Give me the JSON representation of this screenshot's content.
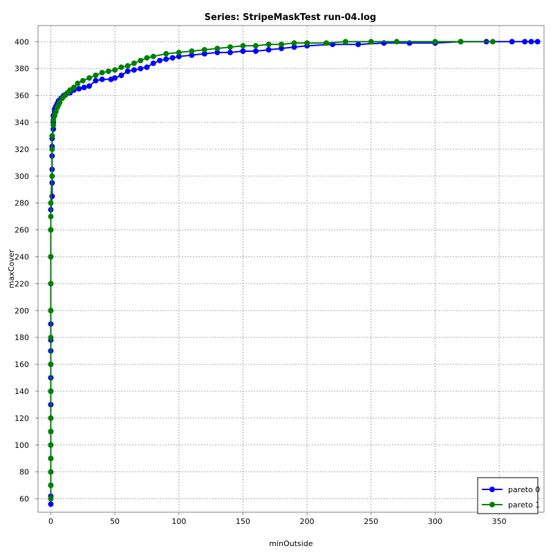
{
  "chart_data": {
    "type": "line",
    "title": "Series: StripeMaskTest run-04.log",
    "xlabel": "minOutside",
    "ylabel": "maxCover",
    "xlim": [
      -10,
      385
    ],
    "ylim": [
      50,
      412
    ],
    "xticks": [
      0,
      50,
      100,
      150,
      200,
      250,
      300,
      350
    ],
    "yticks": [
      60,
      80,
      100,
      120,
      140,
      160,
      180,
      200,
      220,
      240,
      260,
      280,
      300,
      320,
      340,
      360,
      380,
      400
    ],
    "grid": true,
    "legend_position": "bottom-right",
    "series": [
      {
        "name": "pareto 0",
        "color": "#0000ff",
        "x": [
          0,
          0,
          0,
          0,
          0,
          0,
          0,
          0,
          0,
          0,
          0,
          0,
          0,
          0,
          0,
          0,
          0,
          0,
          0,
          0,
          1,
          1,
          1,
          1,
          1,
          1,
          2,
          2,
          2,
          3,
          3,
          4,
          5,
          6,
          8,
          10,
          12,
          15,
          18,
          22,
          26,
          30,
          35,
          40,
          47,
          50,
          55,
          60,
          65,
          70,
          75,
          80,
          85,
          90,
          95,
          100,
          110,
          120,
          130,
          140,
          150,
          160,
          170,
          180,
          190,
          200,
          220,
          240,
          260,
          280,
          300,
          320,
          340,
          360,
          370,
          375,
          380
        ],
        "y": [
          56,
          62,
          70,
          80,
          90,
          100,
          110,
          120,
          130,
          140,
          150,
          160,
          170,
          178,
          190,
          200,
          220,
          240,
          260,
          275,
          285,
          295,
          305,
          315,
          322,
          328,
          335,
          340,
          345,
          348,
          350,
          352,
          354,
          356,
          358,
          360,
          361,
          362,
          364,
          365,
          366,
          367,
          371,
          372,
          372,
          373,
          375,
          378,
          379,
          380,
          381,
          384,
          386,
          387,
          388,
          389,
          390,
          391,
          392,
          392,
          393,
          393,
          394,
          395,
          396,
          397,
          398,
          398,
          399,
          399,
          399,
          400,
          400,
          400,
          400,
          400,
          400
        ]
      },
      {
        "name": "pareto 1",
        "color": "#007f00",
        "x": [
          0,
          0,
          0,
          0,
          0,
          0,
          0,
          0,
          0,
          0,
          0,
          0,
          0,
          0,
          0,
          0,
          1,
          1,
          1,
          2,
          2,
          3,
          4,
          5,
          6,
          7,
          9,
          11,
          13,
          15,
          18,
          21,
          25,
          30,
          35,
          40,
          45,
          50,
          55,
          60,
          65,
          70,
          75,
          80,
          90,
          100,
          110,
          120,
          130,
          140,
          150,
          160,
          170,
          180,
          190,
          200,
          215,
          230,
          250,
          270,
          300,
          320,
          345
        ],
        "y": [
          60,
          70,
          80,
          90,
          100,
          110,
          120,
          140,
          160,
          180,
          200,
          220,
          240,
          260,
          270,
          280,
          300,
          320,
          330,
          338,
          342,
          345,
          348,
          351,
          353,
          355,
          358,
          360,
          362,
          364,
          366,
          369,
          371,
          373,
          375,
          377,
          378,
          379,
          381,
          382,
          384,
          386,
          388,
          389,
          391,
          392,
          393,
          394,
          395,
          396,
          397,
          397,
          398,
          398,
          399,
          399,
          399,
          400,
          400,
          400,
          400,
          400,
          400
        ]
      }
    ]
  }
}
